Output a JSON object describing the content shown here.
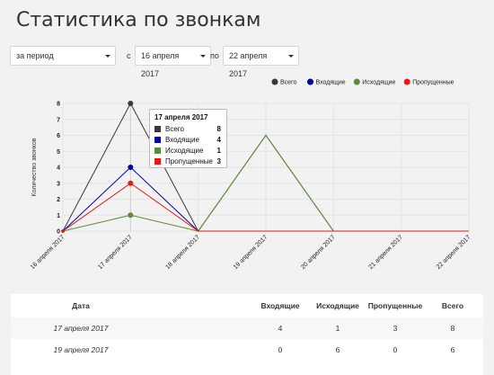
{
  "page": {
    "title": "Статистика по звонкам"
  },
  "filters": {
    "period": "за период",
    "from_label": "с",
    "from_date": "16 апреля 2017",
    "to_label": "по",
    "to_date": "22 апреля 2017"
  },
  "chart_data": {
    "type": "line",
    "ylabel": "Количество звонков",
    "xlabel": "",
    "categories": [
      "16 апреля 2017",
      "17 апреля 2017",
      "18 апреля 2017",
      "19 апреля 2017",
      "20 апреля 2017",
      "21 апреля 2017",
      "22 апреля 2017"
    ],
    "ylim": [
      0,
      8
    ],
    "yticks": [
      0,
      1,
      2,
      3,
      4,
      5,
      6,
      7,
      8
    ],
    "grid": true,
    "legend_position": "top-right",
    "series": [
      {
        "name": "Всего",
        "color": "#3d3636",
        "values": [
          0,
          8,
          0,
          6,
          0,
          0,
          0
        ]
      },
      {
        "name": "Входящие",
        "color": "#0000a0",
        "values": [
          0,
          4,
          0,
          0,
          0,
          0,
          0
        ]
      },
      {
        "name": "Исходящие",
        "color": "#5e8a3a",
        "values": [
          0,
          1,
          0,
          6,
          0,
          0,
          0
        ]
      },
      {
        "name": "Пропущенные",
        "color": "#e61919",
        "values": [
          0,
          3,
          0,
          0,
          0,
          0,
          0
        ]
      }
    ],
    "tooltip": {
      "title": "17 апреля 2017",
      "rows": [
        {
          "name": "Всего",
          "value": "8",
          "color": "#3d3636"
        },
        {
          "name": "Входящие",
          "value": "4",
          "color": "#0000a0"
        },
        {
          "name": "Исходящие",
          "value": "1",
          "color": "#5e8a3a"
        },
        {
          "name": "Пропущенные",
          "value": "3",
          "color": "#e61919"
        }
      ]
    }
  },
  "table": {
    "headers": [
      "Дата",
      "Входящие",
      "Исходящие",
      "Пропущенные",
      "Всего"
    ],
    "rows": [
      [
        "17 апреля 2017",
        "4",
        "1",
        "3",
        "8"
      ],
      [
        "19 апреля 2017",
        "0",
        "6",
        "0",
        "6"
      ]
    ]
  }
}
